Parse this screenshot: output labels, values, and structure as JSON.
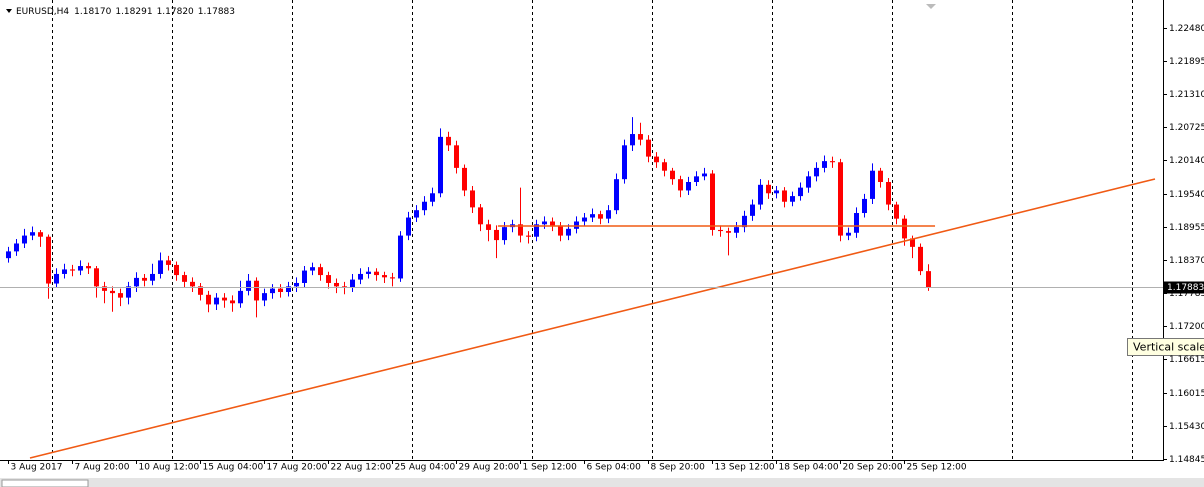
{
  "chart_data": {
    "type": "candlestick",
    "header": {
      "symbol": "EURUSD,H4",
      "open": "1.18170",
      "high": "1.18291",
      "low": "1.17820",
      "close": "1.17883"
    },
    "open": [
      1.184,
      1.1852,
      1.1866,
      1.188,
      1.1886,
      1.1878,
      1.1795,
      1.1812,
      1.182,
      1.1818,
      1.1826,
      1.1822,
      1.179,
      1.1782,
      1.1778,
      1.177,
      1.179,
      1.1805,
      1.18,
      1.1812,
      1.1836,
      1.1828,
      1.181,
      1.1798,
      1.179,
      1.1775,
      1.1758,
      1.177,
      1.1765,
      1.176,
      1.1782,
      1.18,
      1.1765,
      1.1778,
      1.1786,
      1.178,
      1.179,
      1.1796,
      1.1818,
      1.1824,
      1.181,
      1.1796,
      1.179,
      1.1788,
      1.1802,
      1.1812,
      1.1816,
      1.181,
      1.1806,
      1.1804,
      1.188,
      1.1912,
      1.1925,
      1.194,
      1.1955,
      1.2055,
      1.204,
      1.2,
      1.196,
      1.193,
      1.19,
      1.189,
      1.1872,
      1.1895,
      1.19,
      1.188,
      1.1878,
      1.19,
      1.1905,
      1.1898,
      1.188,
      1.1892,
      1.1905,
      1.1912,
      1.1918,
      1.191,
      1.1925,
      1.198,
      1.204,
      1.206,
      1.205,
      1.202,
      1.201,
      1.1995,
      1.198,
      1.196,
      1.1975,
      1.1985,
      1.199,
      1.189,
      1.1888,
      1.1885,
      1.1895,
      1.1915,
      1.1935,
      1.197,
      1.1955,
      1.196,
      1.194,
      1.195,
      1.1965,
      1.1985,
      1.2,
      1.2012,
      1.201,
      1.188,
      1.1885,
      1.192,
      1.1945,
      1.1995,
      1.1975,
      1.1935,
      1.191,
      1.1875,
      1.186,
      1.1817
    ],
    "high": [
      1.186,
      1.1874,
      1.1892,
      1.1896,
      1.189,
      1.1882,
      1.1822,
      1.183,
      1.1828,
      1.1836,
      1.1832,
      1.1826,
      1.1798,
      1.179,
      1.1786,
      1.1798,
      1.1815,
      1.1812,
      1.183,
      1.185,
      1.1844,
      1.1834,
      1.1816,
      1.1806,
      1.1796,
      1.1782,
      1.1778,
      1.1778,
      1.1774,
      1.18,
      1.1812,
      1.1806,
      1.1786,
      1.1794,
      1.1794,
      1.1798,
      1.1806,
      1.1826,
      1.1832,
      1.183,
      1.1816,
      1.1804,
      1.1798,
      1.1812,
      1.1822,
      1.1824,
      1.1822,
      1.1816,
      1.1814,
      1.1888,
      1.1922,
      1.1934,
      1.195,
      1.1965,
      1.207,
      1.2064,
      1.2048,
      1.2006,
      1.1968,
      1.1936,
      1.1908,
      1.1898,
      1.1904,
      1.1908,
      1.1965,
      1.1888,
      1.1908,
      1.1914,
      1.1912,
      1.1904,
      1.19,
      1.1914,
      1.192,
      1.1928,
      1.1924,
      1.1934,
      1.199,
      1.205,
      1.209,
      1.208,
      1.2058,
      1.2028,
      1.2016,
      1.2,
      1.1986,
      1.1984,
      1.1994,
      1.2,
      1.1996,
      1.1898,
      1.1894,
      1.1904,
      1.1924,
      1.1944,
      1.198,
      1.1978,
      1.1968,
      1.1966,
      1.1958,
      1.1974,
      1.1994,
      1.201,
      1.2022,
      1.202,
      1.2016,
      1.1894,
      1.193,
      1.1954,
      1.2008,
      1.2,
      1.1982,
      1.194,
      1.1916,
      1.188,
      1.1866,
      1.18291
    ],
    "low": [
      1.1832,
      1.1844,
      1.1858,
      1.1872,
      1.186,
      1.1768,
      1.1788,
      1.1804,
      1.1808,
      1.181,
      1.1812,
      1.177,
      1.176,
      1.1745,
      1.1755,
      1.1758,
      1.178,
      1.179,
      1.1792,
      1.1804,
      1.1818,
      1.18,
      1.1788,
      1.178,
      1.1765,
      1.1744,
      1.1748,
      1.1752,
      1.1745,
      1.1752,
      1.1774,
      1.1735,
      1.1755,
      1.1768,
      1.177,
      1.1772,
      1.178,
      1.1788,
      1.181,
      1.18,
      1.1786,
      1.1778,
      1.1776,
      1.178,
      1.1794,
      1.1804,
      1.18,
      1.1796,
      1.179,
      1.1798,
      1.1872,
      1.1904,
      1.1916,
      1.1932,
      1.1948,
      1.203,
      1.199,
      1.195,
      1.192,
      1.1888,
      1.187,
      1.184,
      1.1864,
      1.1886,
      1.1868,
      1.1866,
      1.187,
      1.1892,
      1.1888,
      1.187,
      1.1872,
      1.1884,
      1.1896,
      1.1904,
      1.19,
      1.1902,
      1.1918,
      1.1972,
      1.203,
      1.204,
      1.201,
      1.2,
      1.1985,
      1.197,
      1.1948,
      1.1952,
      1.1968,
      1.1978,
      1.188,
      1.1878,
      1.1845,
      1.1876,
      1.1886,
      1.1906,
      1.1926,
      1.1945,
      1.1946,
      1.193,
      1.1932,
      1.1942,
      1.1956,
      1.1976,
      1.1992,
      1.2,
      1.187,
      1.1872,
      1.1876,
      1.1912,
      1.1936,
      1.1965,
      1.1925,
      1.19,
      1.1862,
      1.184,
      1.181,
      1.1782
    ],
    "close": [
      1.1852,
      1.1866,
      1.188,
      1.1886,
      1.1878,
      1.1795,
      1.1812,
      1.182,
      1.1818,
      1.1826,
      1.1822,
      1.179,
      1.1782,
      1.1778,
      1.177,
      1.179,
      1.1805,
      1.18,
      1.1812,
      1.1836,
      1.1828,
      1.181,
      1.1798,
      1.179,
      1.1775,
      1.1758,
      1.177,
      1.1765,
      1.176,
      1.1782,
      1.18,
      1.1765,
      1.1778,
      1.1786,
      1.178,
      1.179,
      1.1796,
      1.1818,
      1.1824,
      1.181,
      1.1796,
      1.179,
      1.1788,
      1.1802,
      1.1812,
      1.1816,
      1.181,
      1.1806,
      1.1804,
      1.188,
      1.1912,
      1.1925,
      1.194,
      1.1955,
      1.2055,
      1.204,
      1.2,
      1.196,
      1.193,
      1.19,
      1.189,
      1.1872,
      1.1895,
      1.19,
      1.188,
      1.1878,
      1.19,
      1.1905,
      1.1898,
      1.188,
      1.1892,
      1.1905,
      1.1912,
      1.1918,
      1.191,
      1.1925,
      1.198,
      1.204,
      1.206,
      1.205,
      1.202,
      1.201,
      1.1995,
      1.198,
      1.196,
      1.1975,
      1.1985,
      1.199,
      1.189,
      1.1888,
      1.1885,
      1.1895,
      1.1915,
      1.1935,
      1.197,
      1.1955,
      1.196,
      1.194,
      1.195,
      1.1965,
      1.1985,
      1.2,
      1.2012,
      1.201,
      1.188,
      1.1885,
      1.192,
      1.1945,
      1.1995,
      1.1975,
      1.1935,
      1.191,
      1.1875,
      1.186,
      1.1817,
      1.17883
    ],
    "up_color": "#0000ff",
    "down_color": "#ff0000",
    "xlim": [
      -1,
      144.4
    ],
    "xticks": [
      {
        "value": 0,
        "label": "3 Aug 2017"
      },
      {
        "value": 8,
        "label": "7 Aug 20:00"
      },
      {
        "value": 16,
        "label": "10 Aug 12:00"
      },
      {
        "value": 24,
        "label": "15 Aug 04:00"
      },
      {
        "value": 32,
        "label": "17 Aug 20:00"
      },
      {
        "value": 40,
        "label": "22 Aug 12:00"
      },
      {
        "value": 48,
        "label": "25 Aug 04:00"
      },
      {
        "value": 56,
        "label": "29 Aug 20:00"
      },
      {
        "value": 64,
        "label": "1 Sep 12:00"
      },
      {
        "value": 72,
        "label": "6 Sep 04:00"
      },
      {
        "value": 80,
        "label": "8 Sep 20:00"
      },
      {
        "value": 88,
        "label": "13 Sep 12:00"
      },
      {
        "value": 96,
        "label": "18 Sep 04:00"
      },
      {
        "value": 104,
        "label": "20 Sep 20:00"
      },
      {
        "value": 112,
        "label": "25 Sep 12:00"
      }
    ],
    "ylim": [
      1.14822,
      1.22976
    ],
    "yticks": [
      {
        "value": 1.2248,
        "label": "1.22480"
      },
      1.21895,
      {
        "value": 1.2131,
        "label": "1.21310"
      },
      1.20725,
      {
        "value": 1.2014,
        "label": "1.20140"
      },
      {
        "value": 1.1954,
        "label": "1.19540"
      },
      1.18955,
      {
        "value": 1.1837,
        "label": "1.18370"
      },
      1.17785,
      {
        "value": 1.172,
        "label": "1.17200"
      },
      1.16615,
      1.16015,
      {
        "value": 1.1543,
        "label": "1.15430"
      },
      1.14845
    ],
    "current_price": 1.17883,
    "lines": [
      {
        "color": "#f05a14",
        "x": [
          2.75,
          143.4
        ],
        "y": [
          1.14857,
          1.19803
        ]
      },
      {
        "color": "#f05a14",
        "x": [
          61.25,
          115.9
        ],
        "y": [
          1.1897,
          1.1897
        ]
      }
    ],
    "tooltip": "Vertical scale"
  }
}
